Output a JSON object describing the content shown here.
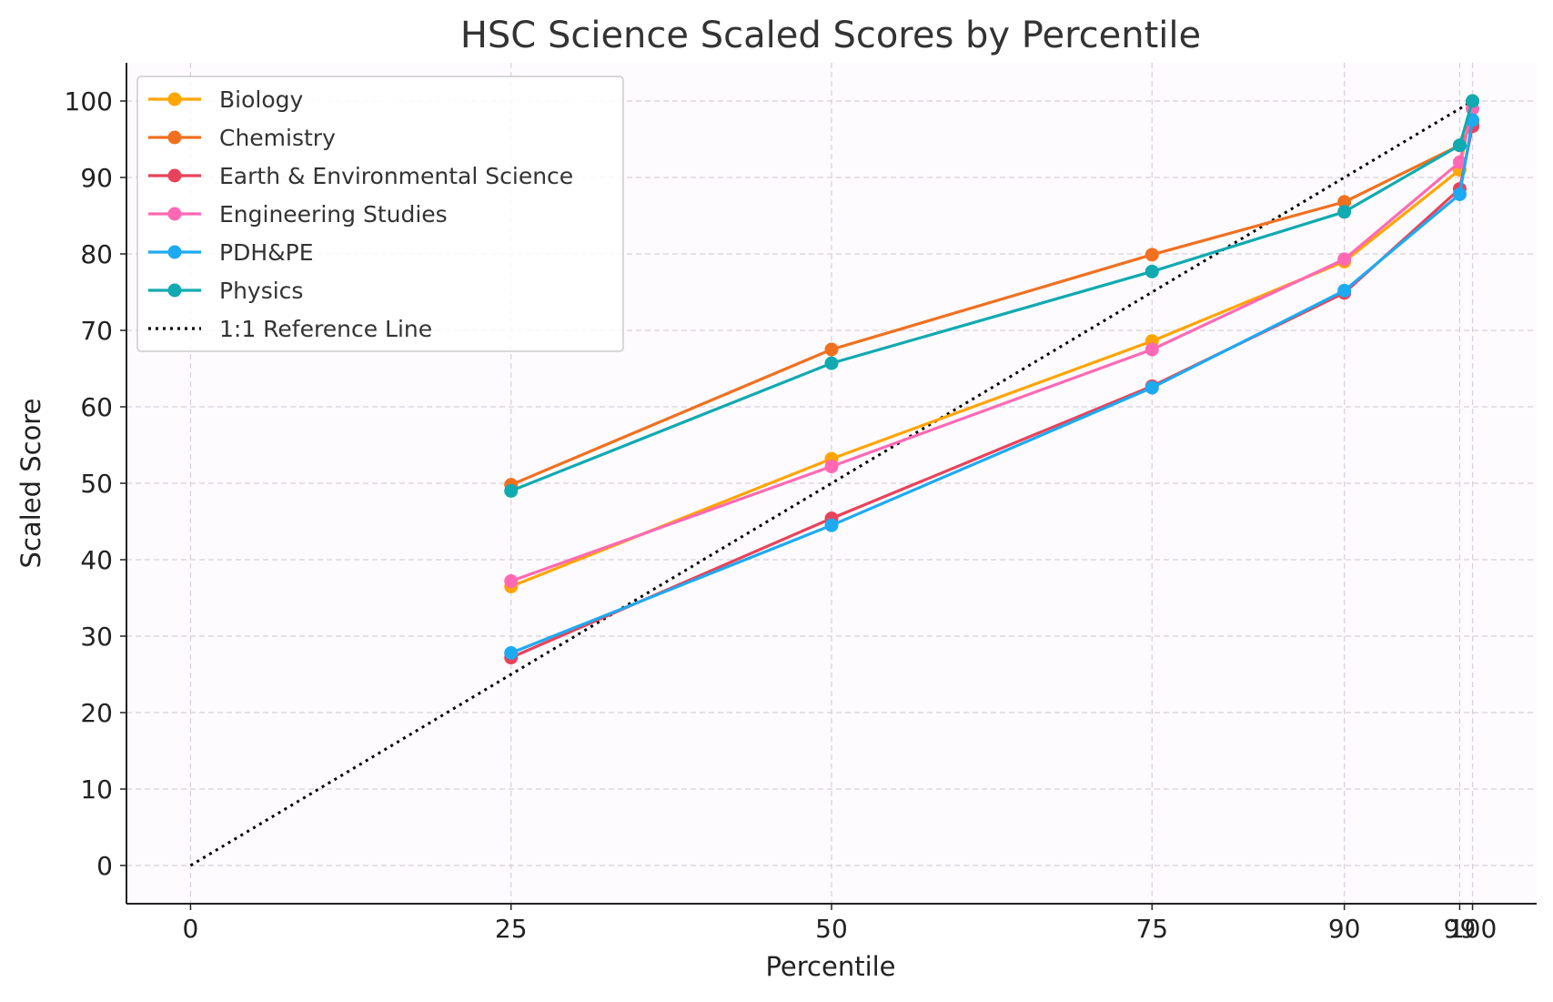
{
  "chart_data": {
    "type": "line",
    "title": "HSC Science Scaled Scores by Percentile",
    "xlabel": "Percentile",
    "ylabel": "Scaled Score",
    "xlim": [
      -5,
      105
    ],
    "ylim": [
      -5,
      105
    ],
    "x_ticks": [
      0,
      25,
      50,
      75,
      90,
      99,
      100
    ],
    "x_tick_labels": [
      "0",
      "25",
      "50",
      "75",
      "90",
      "99",
      "100"
    ],
    "y_ticks": [
      0,
      10,
      20,
      30,
      40,
      50,
      60,
      70,
      80,
      90,
      100
    ],
    "y_tick_labels": [
      "0",
      "10",
      "20",
      "30",
      "40",
      "50",
      "60",
      "70",
      "80",
      "90",
      "100"
    ],
    "grid": true,
    "legend_position": "top-left",
    "x": [
      25,
      50,
      75,
      90,
      99,
      100
    ],
    "series": [
      {
        "name": "Biology",
        "color": "#FFA500",
        "values": [
          36.5,
          53.2,
          68.6,
          79.0,
          91.0,
          100.0
        ]
      },
      {
        "name": "Chemistry",
        "color": "#F07020",
        "values": [
          49.8,
          67.5,
          79.9,
          86.8,
          94.2,
          97.0
        ]
      },
      {
        "name": "Earth & Environmental Science",
        "color": "#E8435A",
        "values": [
          27.2,
          45.4,
          62.7,
          74.9,
          88.5,
          96.7
        ]
      },
      {
        "name": "Engineering Studies",
        "color": "#FF69B4",
        "values": [
          37.2,
          52.2,
          67.5,
          79.3,
          92.0,
          99.0
        ]
      },
      {
        "name": "PDH&PE",
        "color": "#1EAAF1",
        "values": [
          27.8,
          44.5,
          62.5,
          75.2,
          87.8,
          97.5
        ]
      },
      {
        "name": "Physics",
        "color": "#10AAB0",
        "values": [
          49.0,
          65.7,
          77.7,
          85.5,
          94.2,
          100.0
        ]
      }
    ],
    "reference_line": {
      "name": "1:1 Reference Line",
      "color": "#000000",
      "x": [
        0,
        100
      ],
      "y": [
        0,
        100
      ]
    }
  }
}
